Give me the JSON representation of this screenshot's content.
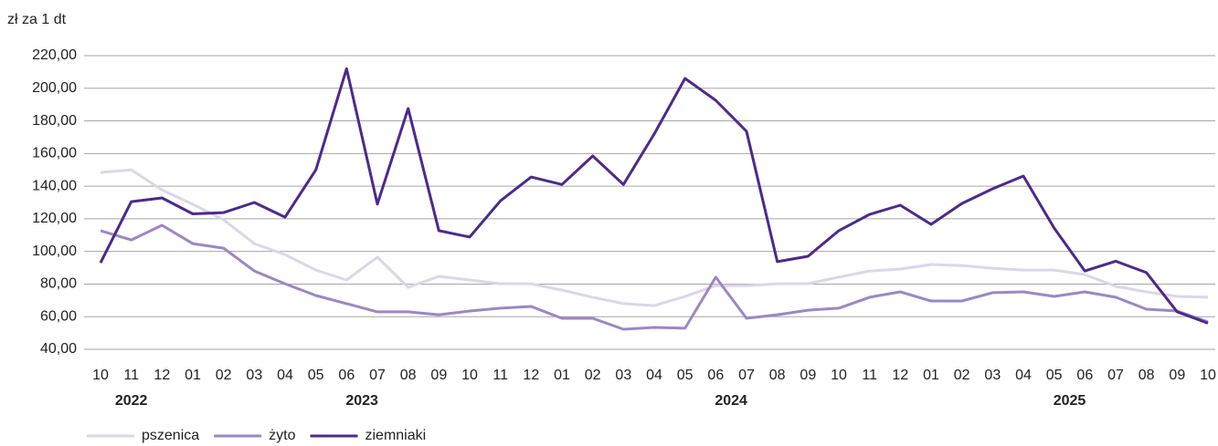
{
  "chart_data": {
    "type": "line",
    "y_label": "zł za 1 dt",
    "categories": [
      "10",
      "11",
      "12",
      "01",
      "02",
      "03",
      "04",
      "05",
      "06",
      "07",
      "08",
      "09",
      "10",
      "11",
      "12",
      "01",
      "02",
      "03",
      "04",
      "05",
      "06",
      "07",
      "08",
      "09",
      "10",
      "11",
      "12",
      "01",
      "02",
      "03",
      "04",
      "05",
      "06",
      "07",
      "08",
      "09",
      "10"
    ],
    "years": [
      "2022",
      "2023",
      "2024",
      "2025"
    ],
    "series": [
      {
        "name": "pszenica",
        "color": "#dcd6ea",
        "values": [
          148.4,
          150,
          137.7,
          128.9,
          119.4,
          104.8,
          98,
          88.6,
          82.5,
          96.5,
          78,
          84.7,
          82.5,
          80.2,
          80.2,
          76.3,
          71.9,
          68,
          66.8,
          72.4,
          79,
          79,
          80.2,
          80.2,
          84.2,
          88,
          89.2,
          92,
          91.4,
          89.7,
          88.6,
          88.6,
          85.8,
          78.6,
          75.2,
          72.4,
          71.9
        ]
      },
      {
        "name": "żyto",
        "color": "#9d86c6",
        "values": [
          112.7,
          107,
          116,
          104.8,
          102,
          88,
          80.2,
          73,
          68,
          63,
          63,
          61.2,
          63.5,
          65.2,
          66.3,
          59,
          59,
          52.3,
          53.4,
          52.9,
          84.2,
          59,
          61.2,
          64,
          65.2,
          71.9,
          75.2,
          69.6,
          69.6,
          74.7,
          75.2,
          72.4,
          75.2,
          71.9,
          64.6,
          63.5,
          56.8
        ]
      },
      {
        "name": "ziemniaki",
        "color": "#4b2a8c",
        "values": [
          93,
          130.5,
          132.8,
          123,
          123.8,
          130,
          121,
          150,
          212,
          129,
          187.6,
          112.7,
          108.8,
          131,
          145.6,
          141,
          158.5,
          141,
          172,
          206,
          192.6,
          173.6,
          93.7,
          97,
          112.7,
          122.7,
          128.3,
          116.6,
          129.4,
          138.4,
          146.2,
          114.3,
          88,
          94,
          87,
          63,
          56
        ]
      }
    ],
    "ylim": [
      40,
      220
    ],
    "yticks": [
      {
        "value": 40,
        "label": "40,00"
      },
      {
        "value": 60,
        "label": "60,00"
      },
      {
        "value": 80,
        "label": "80,00"
      },
      {
        "value": 100,
        "label": "100,00"
      },
      {
        "value": 120,
        "label": "120,00"
      },
      {
        "value": 140,
        "label": "140,00"
      },
      {
        "value": 160,
        "label": "160,00"
      },
      {
        "value": 180,
        "label": "180,00"
      },
      {
        "value": 200,
        "label": "200,00"
      },
      {
        "value": 220,
        "label": "220,00"
      }
    ],
    "grid": true,
    "legend": "bottom"
  }
}
